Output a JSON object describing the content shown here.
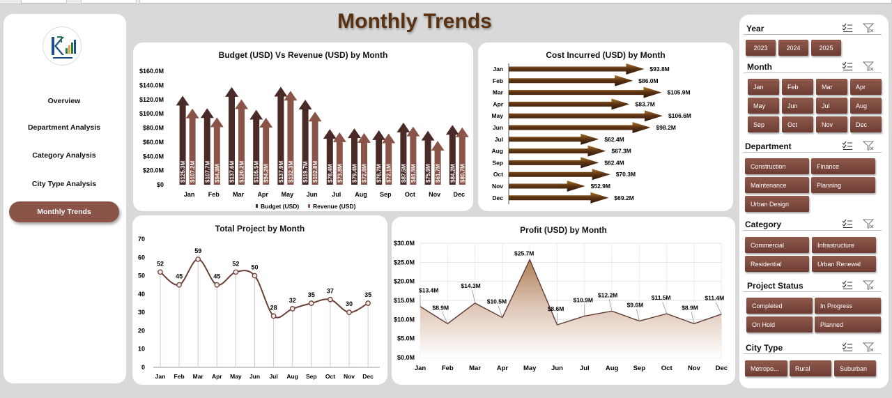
{
  "dashboard": {
    "title": "Monthly Trends"
  },
  "sidebar": {
    "logo_text": "logo",
    "items": [
      {
        "label": "Overview"
      },
      {
        "label": "Department Analysis"
      },
      {
        "label": "Category Analysis"
      },
      {
        "label": "City Type Analysis"
      },
      {
        "label": "Monthly Trends",
        "active": true
      }
    ]
  },
  "colors": {
    "accent": "#8a5448",
    "dark_brown": "#5a3213",
    "series_budget": "#4a2a26",
    "series_revenue": "#8a5448"
  },
  "chart_data": [
    {
      "type": "bar",
      "title": "Budget (USD) Vs Revenue (USD) by Month",
      "categories": [
        "Jan",
        "Feb",
        "Mar",
        "Apr",
        "May",
        "Jun",
        "Jul",
        "Aug",
        "Sep",
        "Oct",
        "Nov",
        "Dec"
      ],
      "series": [
        {
          "name": "Budget (USD)",
          "values": [
            125.3,
            107.7,
            137.6,
            105.5,
            137.9,
            119.7,
            78.4,
            79.4,
            76.7,
            87.5,
            75.9,
            84.2
          ],
          "labels": [
            "$125.3M",
            "$107.7M",
            "$137.6M",
            "$105.5M",
            "$137.9M",
            "$119.7M",
            "$78.4M",
            "$79.4M",
            "$76.7M",
            "$87.5M",
            "$75.9M",
            "$84.2M"
          ]
        },
        {
          "name": "Revenue (USD)",
          "values": [
            107.2,
            94.9,
            120.2,
            94.2,
            132.3,
            102.8,
            73.8,
            72.8,
            72.1,
            81.9,
            61.7,
            80.7
          ],
          "labels": [
            "$107.2M",
            "$94.9M",
            "$120.2M",
            "$94.2M",
            "$132.3M",
            "$102.8M",
            "$73.8M",
            "$72.8M",
            "$72.1M",
            "$81.9M",
            "$61.7M",
            "$80.7M"
          ]
        }
      ],
      "yticks": [
        "$0",
        "$20.0M",
        "$40.0M",
        "$60.0M",
        "$80.0M",
        "$100.0M",
        "$120.0M",
        "$140.0M",
        "$160.0M"
      ],
      "ylim": [
        0,
        160
      ],
      "legend": [
        "Budget (USD)",
        "Revenue (USD)"
      ],
      "legend_position": "bottom"
    },
    {
      "type": "bar",
      "orientation": "horizontal",
      "title": "Cost Incurred (USD) by Month",
      "categories": [
        "Jan",
        "Feb",
        "Mar",
        "Apr",
        "May",
        "Jun",
        "Jul",
        "Aug",
        "Sep",
        "Oct",
        "Nov",
        "Dec"
      ],
      "values": [
        93.8,
        86.0,
        105.9,
        83.7,
        106.6,
        98.2,
        62.4,
        67.3,
        62.4,
        70.3,
        52.9,
        69.2
      ],
      "labels": [
        "$93.8M",
        "$86.0M",
        "$105.9M",
        "$83.7M",
        "$106.6M",
        "$98.2M",
        "$62.4M",
        "$67.3M",
        "$62.4M",
        "$70.3M",
        "$52.9M",
        "$69.2M"
      ],
      "xlim": [
        0,
        110
      ]
    },
    {
      "type": "line",
      "title": "Total Project by Month",
      "categories": [
        "Jan",
        "Feb",
        "Mar",
        "Apr",
        "May",
        "Jun",
        "Jul",
        "Aug",
        "Sep",
        "Oct",
        "Nov",
        "Dec"
      ],
      "values": [
        52,
        45,
        59,
        45,
        52,
        50,
        28,
        32,
        35,
        37,
        30,
        35
      ],
      "yticks": [
        "0",
        "10",
        "20",
        "30",
        "40",
        "50",
        "60",
        "70"
      ],
      "ylim": [
        0,
        70
      ]
    },
    {
      "type": "area",
      "title": "Profit (USD) by Month",
      "categories": [
        "Jan",
        "Feb",
        "Mar",
        "Apr",
        "May",
        "Jun",
        "Jul",
        "Aug",
        "Sep",
        "Oct",
        "Nov",
        "Dec"
      ],
      "values": [
        13.4,
        8.9,
        14.3,
        10.5,
        25.7,
        8.6,
        10.9,
        12.2,
        9.6,
        11.5,
        8.9,
        11.4
      ],
      "labels": [
        "$13.4M",
        "$8.9M",
        "$14.3M",
        "$10.5M",
        "$25.7M",
        "$8.6M",
        "$10.9M",
        "$12.2M",
        "$9.6M",
        "$11.5M",
        "$8.9M",
        "$11.4M"
      ],
      "yticks": [
        "$0.0M",
        "$5.0M",
        "$10.0M",
        "$15.0M",
        "$20.0M",
        "$25.0M",
        "$30.0M"
      ],
      "ylim": [
        0,
        30
      ]
    }
  ],
  "slicers": {
    "year": {
      "title": "Year",
      "items": [
        "2023",
        "2024",
        "2025"
      ]
    },
    "month": {
      "title": "Month",
      "items": [
        "Jan",
        "Feb",
        "Mar",
        "Apr",
        "May",
        "Jun",
        "Jul",
        "Aug",
        "Sep",
        "Oct",
        "Nov",
        "Dec"
      ]
    },
    "department": {
      "title": "Department",
      "items": [
        "Construction",
        "Finance",
        "Maintenance",
        "Planning",
        "Urban Design"
      ]
    },
    "category": {
      "title": "Category",
      "items": [
        "Commercial",
        "Infrastructure",
        "Residential",
        "Urban Renewal"
      ]
    },
    "project_status": {
      "title": "Project Status",
      "items": [
        "Completed",
        "In Progress",
        "On Hold",
        "Planned"
      ]
    },
    "city_type": {
      "title": "City Type",
      "items": [
        "Metropo...",
        "Rural",
        "Suburban"
      ]
    }
  }
}
